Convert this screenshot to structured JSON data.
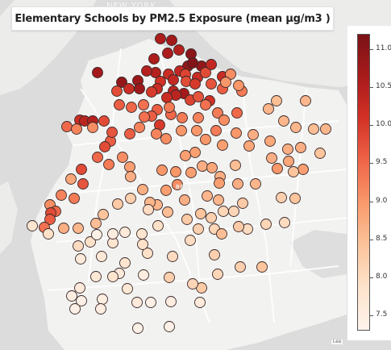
{
  "title": "Elementary Schools by PM2.5 Exposure (mean µg/m3 )",
  "map_labels": {
    "new_york": "NEW YORK",
    "brooklyn": "BROOKLYN",
    "attribution": "Lea"
  },
  "colors": {
    "land": "#f2f2f1",
    "water": "#dcdcdc",
    "road_minor": "#ffffff",
    "point_stroke": "#3a2a2a",
    "colorbar_stops": [
      "#fdf3ec",
      "#fde3cc",
      "#fcc49c",
      "#f99a6b",
      "#ef6548",
      "#d33226",
      "#a91b1b",
      "#7a1216"
    ]
  },
  "legend": {
    "min": 7.3,
    "max": 11.2,
    "ticks": [
      "7.5",
      "8.0",
      "8.5",
      "9.0",
      "9.5",
      "10.0",
      "10.5",
      "11.0"
    ]
  },
  "schools": [
    {
      "v": 10.6
    },
    {
      "v": 10.7
    },
    {
      "v": 10.5
    },
    {
      "v": 10.6
    },
    {
      "v": 11.0
    },
    {
      "v": 10.9
    },
    {
      "v": 10.9
    },
    {
      "v": 11.1
    },
    {
      "v": 10.6
    },
    {
      "v": 10.5
    },
    {
      "v": 10.2
    },
    {
      "v": 10.3
    },
    {
      "v": 9.9
    },
    {
      "v": 10.3
    },
    {
      "v": 10.2
    },
    {
      "v": 9.8
    },
    {
      "v": 10.3
    },
    {
      "v": 10.2
    },
    {
      "v": 10.7
    },
    {
      "v": 10.9
    },
    {
      "v": 10.8
    },
    {
      "v": 10.5
    },
    {
      "v": 10.1
    },
    {
      "v": 10.4
    },
    {
      "v": 9.8
    },
    {
      "v": 10.0
    },
    {
      "v": 9.7
    },
    {
      "v": 10.7
    },
    {
      "v": 10.4
    },
    {
      "v": 10.2
    },
    {
      "v": 10.0
    },
    {
      "v": 10.2
    },
    {
      "v": 9.9
    },
    {
      "v": 9.7
    },
    {
      "v": 10.1
    },
    {
      "v": 9.6
    },
    {
      "v": 10.8
    },
    {
      "v": 10.2
    },
    {
      "v": 9.8
    },
    {
      "v": 9.6
    },
    {
      "v": 9.5
    },
    {
      "v": 9.4
    },
    {
      "v": 9.6
    },
    {
      "v": 9.5
    },
    {
      "v": 9.3
    },
    {
      "v": 9.3
    },
    {
      "v": 9.6
    },
    {
      "v": 10.0
    },
    {
      "v": 9.4
    },
    {
      "v": 9.2
    },
    {
      "v": 9.2
    },
    {
      "v": 9.1
    },
    {
      "v": 9.0
    },
    {
      "v": 9.0
    },
    {
      "v": 9.2
    },
    {
      "v": 9.4
    },
    {
      "v": 9.3
    },
    {
      "v": 9.1
    },
    {
      "v": 9.5
    },
    {
      "v": 9.3
    },
    {
      "v": 9.1
    },
    {
      "v": 9.0
    },
    {
      "v": 9.0
    },
    {
      "v": 9.0
    },
    {
      "v": 9.3
    },
    {
      "v": 8.9
    },
    {
      "v": 8.9
    },
    {
      "v": 8.9
    },
    {
      "v": 9.0
    },
    {
      "v": 8.9
    },
    {
      "v": 8.7
    },
    {
      "v": 8.8
    },
    {
      "v": 8.7
    },
    {
      "v": 8.5
    },
    {
      "v": 8.8
    },
    {
      "v": 8.7
    },
    {
      "v": 9.0
    },
    {
      "v": 8.8
    },
    {
      "v": 8.7
    },
    {
      "v": 8.6
    },
    {
      "v": 8.6
    },
    {
      "v": 8.8
    },
    {
      "v": 8.7
    },
    {
      "v": 8.5
    },
    {
      "v": 8.6
    },
    {
      "v": 9.0
    },
    {
      "v": 8.9
    },
    {
      "v": 8.6
    },
    {
      "v": 8.5
    },
    {
      "v": 8.6
    },
    {
      "v": 8.7
    },
    {
      "v": 8.4
    },
    {
      "v": 8.4
    },
    {
      "v": 8.2
    },
    {
      "v": 8.4
    },
    {
      "v": 8.3
    },
    {
      "v": 8.0
    },
    {
      "v": 8.1
    },
    {
      "v": 8.0
    },
    {
      "v": 8.6
    },
    {
      "v": 8.7
    },
    {
      "v": 8.9
    },
    {
      "v": 8.6
    },
    {
      "v": 8.6
    },
    {
      "v": 8.4
    },
    {
      "v": 8.2
    },
    {
      "v": 8.1
    },
    {
      "v": 8.1
    },
    {
      "v": 9.0
    },
    {
      "v": 9.1
    },
    {
      "v": 8.9
    },
    {
      "v": 8.7
    },
    {
      "v": 8.6
    },
    {
      "v": 8.5
    },
    {
      "v": 8.3
    },
    {
      "v": 8.2
    },
    {
      "v": 8.1
    },
    {
      "v": 9.6
    },
    {
      "v": 9.8
    },
    {
      "v": 9.5
    },
    {
      "v": 9.3
    },
    {
      "v": 9.1
    },
    {
      "v": 8.9
    },
    {
      "v": 8.7
    },
    {
      "v": 8.7
    },
    {
      "v": 8.6
    },
    {
      "v": 10.2
    },
    {
      "v": 10.4
    },
    {
      "v": 10.5
    },
    {
      "v": 9.8
    },
    {
      "v": 9.7
    },
    {
      "v": 9.6
    },
    {
      "v": 9.5
    },
    {
      "v": 9.2
    },
    {
      "v": 9.1
    },
    {
      "v": 9.8
    },
    {
      "v": 9.7
    },
    {
      "v": 9.3
    },
    {
      "v": 9.2
    },
    {
      "v": 9.1
    },
    {
      "v": 9.5
    },
    {
      "v": 9.8
    },
    {
      "v": 9.6
    },
    {
      "v": 9.4
    },
    {
      "v": 8.8
    },
    {
      "v": 8.7
    },
    {
      "v": 8.6
    },
    {
      "v": 8.5
    },
    {
      "v": 8.4
    },
    {
      "v": 8.3
    },
    {
      "v": 8.2
    },
    {
      "v": 8.0
    },
    {
      "v": 7.9
    },
    {
      "v": 7.8
    },
    {
      "v": 7.9
    },
    {
      "v": 8.0
    },
    {
      "v": 7.9
    },
    {
      "v": 7.8
    },
    {
      "v": 7.7
    },
    {
      "v": 7.8
    },
    {
      "v": 7.6
    },
    {
      "v": 7.5
    },
    {
      "v": 7.8
    },
    {
      "v": 7.7
    },
    {
      "v": 7.6
    },
    {
      "v": 7.5
    },
    {
      "v": 7.4
    },
    {
      "v": 7.5
    },
    {
      "v": 7.7
    },
    {
      "v": 7.6
    },
    {
      "v": 7.4
    },
    {
      "v": 7.4
    },
    {
      "v": 7.4
    },
    {
      "v": 7.5
    },
    {
      "v": 7.4
    },
    {
      "v": 7.5
    },
    {
      "v": 7.6
    },
    {
      "v": 8.1
    },
    {
      "v": 8.3
    },
    {
      "v": 8.2
    },
    {
      "v": 8.5
    },
    {
      "v": 8.3
    },
    {
      "v": 8.0
    },
    {
      "v": 7.9
    },
    {
      "v": 8.0
    },
    {
      "v": 8.2
    },
    {
      "v": 8.4
    },
    {
      "v": 8.2
    },
    {
      "v": 8.1
    },
    {
      "v": 7.9
    },
    {
      "v": 7.8
    },
    {
      "v": 7.6
    },
    {
      "v": 7.5
    },
    {
      "v": 7.4
    },
    {
      "v": 7.6
    }
  ]
}
